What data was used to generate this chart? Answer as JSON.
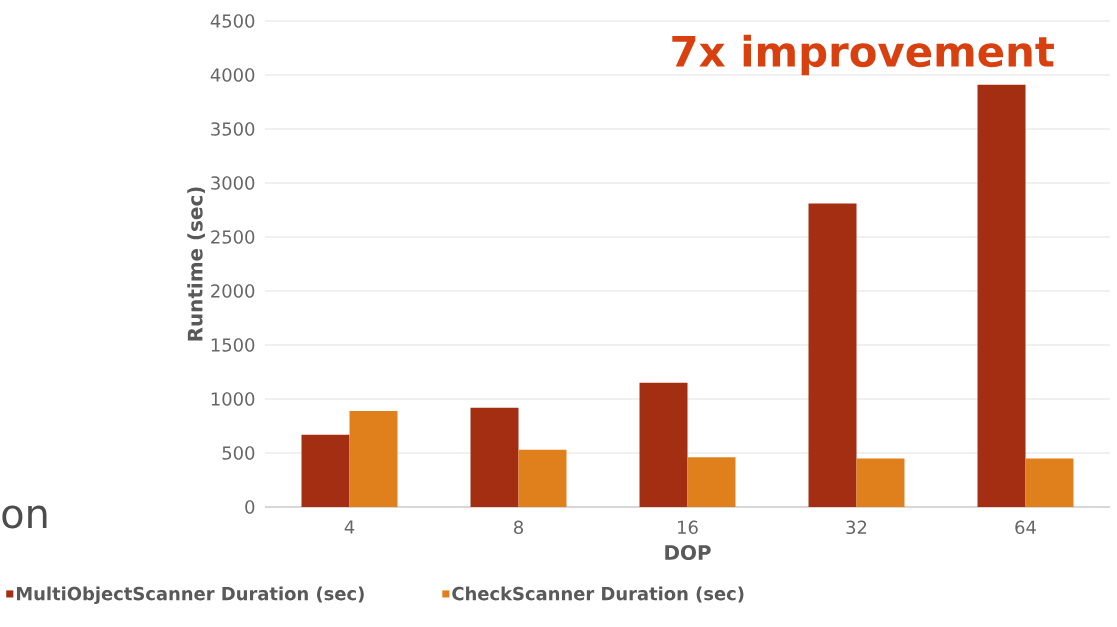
{
  "chart_data": {
    "type": "bar",
    "xlabel": "DOP",
    "ylabel": "Runtime (sec)",
    "categories": [
      "4",
      "8",
      "16",
      "32",
      "64"
    ],
    "series": [
      {
        "name": "MultiObjectScanner Duration (sec)",
        "color": "#a32e12",
        "values": [
          670,
          920,
          1150,
          2810,
          3910
        ]
      },
      {
        "name": "CheckScanner Duration (sec)",
        "color": "#e0801c",
        "values": [
          890,
          530,
          460,
          450,
          450
        ]
      }
    ],
    "ylim": [
      0,
      4500
    ],
    "yticks": [
      0,
      500,
      1000,
      1500,
      2000,
      2500,
      3000,
      3500,
      4000,
      4500
    ],
    "grid": "y",
    "legend": "bottom",
    "annotations": [
      "7x improvement",
      "on"
    ]
  }
}
